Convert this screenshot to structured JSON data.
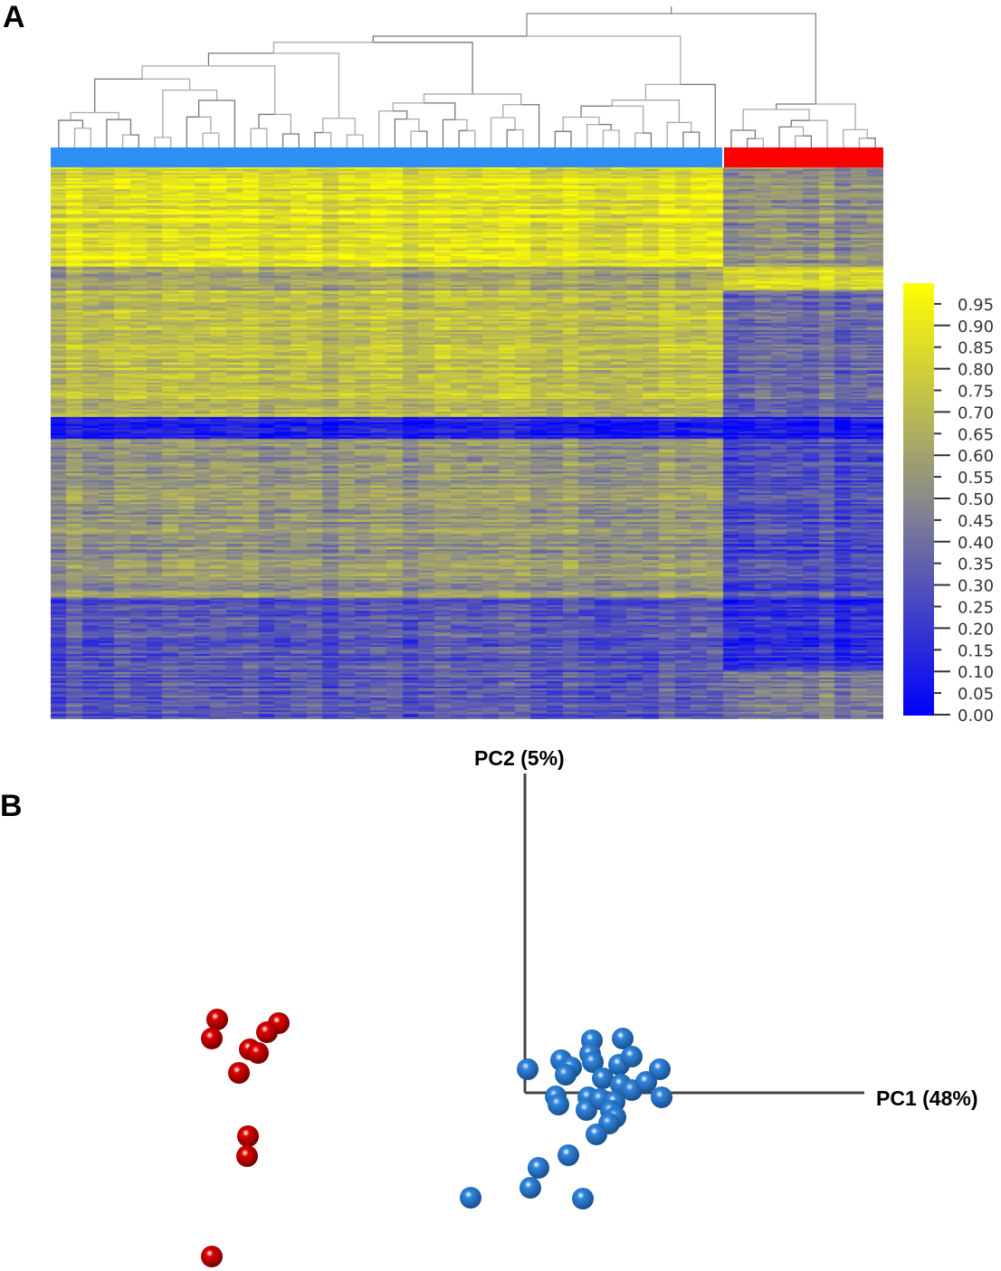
{
  "panels": {
    "a_label": "A",
    "b_label": "B"
  },
  "chart_data": [
    {
      "type": "heatmap",
      "groups": [
        {
          "color": "#2f8ef5"
        },
        {
          "color": "#ff0000"
        }
      ],
      "dendrogram": true,
      "colorbar": {
        "range": [
          0,
          1
        ],
        "colors": [
          "#0000ff",
          "#8a8a8a",
          "#ffff00"
        ],
        "ticks": [
          "0.95",
          "0.90",
          "0.85",
          "0.80",
          "0.75",
          "0.70",
          "0.65",
          "0.60",
          "0.55",
          "0.50",
          "0.45",
          "0.40",
          "0.35",
          "0.30",
          "0.25",
          "0.20",
          "0.15",
          "0.10",
          "0.05",
          "0.00"
        ]
      }
    },
    {
      "type": "scatter",
      "xlabel": "PC1 (48%)",
      "ylabel": "PC2 (5%)",
      "series": [
        {
          "color": "#e00000",
          "points": [
            [
              -34.0,
              8.1
            ],
            [
              -34.6,
              6.0
            ],
            [
              -27.2,
              7.7
            ],
            [
              -28.5,
              6.7
            ],
            [
              -30.4,
              4.8
            ],
            [
              -29.5,
              4.4
            ],
            [
              -31.6,
              2.2
            ],
            [
              -30.6,
              -4.8
            ],
            [
              -30.7,
              -7.0
            ],
            [
              -34.6,
              -18.1
            ]
          ]
        },
        {
          "color": "#2f86e0",
          "points": [
            [
              0.3,
              2.6
            ],
            [
              7.4,
              5.8
            ],
            [
              10.8,
              6.0
            ],
            [
              4.0,
              3.6
            ],
            [
              5.1,
              2.8
            ],
            [
              4.5,
              2.0
            ],
            [
              7.2,
              4.3
            ],
            [
              7.5,
              3.4
            ],
            [
              10.4,
              3.1
            ],
            [
              11.8,
              4.0
            ],
            [
              8.6,
              1.6
            ],
            [
              10.6,
              0.9
            ],
            [
              11.8,
              0.3
            ],
            [
              13.4,
              1.2
            ],
            [
              14.9,
              2.6
            ],
            [
              15.1,
              -0.5
            ],
            [
              3.4,
              -0.4
            ],
            [
              3.7,
              -1.3
            ],
            [
              7.0,
              -0.5
            ],
            [
              6.8,
              -1.9
            ],
            [
              8.3,
              -0.7
            ],
            [
              9.9,
              -1.0
            ],
            [
              9.5,
              -2.0
            ],
            [
              10.0,
              -2.7
            ],
            [
              9.3,
              -3.4
            ],
            [
              7.9,
              -4.6
            ],
            [
              4.8,
              -6.9
            ],
            [
              1.5,
              -8.3
            ],
            [
              0.6,
              -10.5
            ],
            [
              -6.0,
              -11.6
            ],
            [
              6.4,
              -11.7
            ]
          ]
        }
      ]
    }
  ]
}
